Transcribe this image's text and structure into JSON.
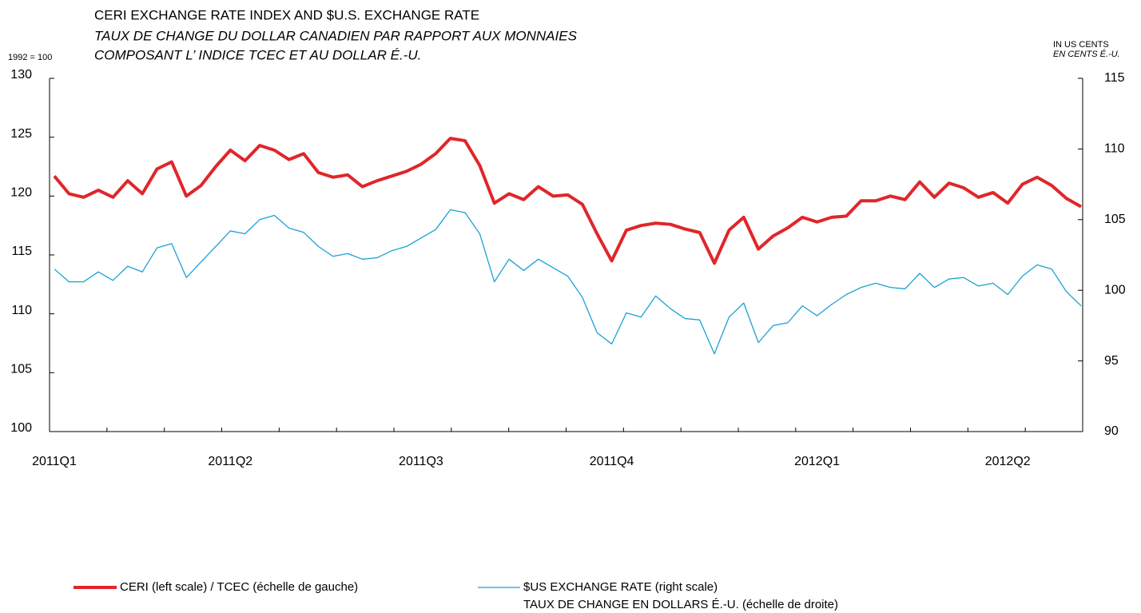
{
  "chart_data": {
    "type": "line",
    "title": "CERI EXCHANGE RATE INDEX AND $U.S. EXCHANGE RATE",
    "subtitle": [
      "TAUX DE CHANGE DU DOLLAR CANADIEN PAR RAPPORT AUX MONNAIES",
      "COMPOSANT L’ INDICE TCEC ET AU DOLLAR É.-U."
    ],
    "y_label": "1992 = 100",
    "y2_label": [
      "IN US CENTS",
      "EN CENTS É.-U."
    ],
    "categories": [
      "2011Q1",
      null,
      null,
      null,
      null,
      null,
      null,
      null,
      null,
      null,
      null,
      null,
      "2011Q2",
      null,
      null,
      null,
      null,
      null,
      null,
      null,
      null,
      null,
      null,
      null,
      null,
      "2011Q3",
      null,
      null,
      null,
      null,
      null,
      null,
      null,
      null,
      null,
      null,
      null,
      null,
      "2011Q4",
      null,
      null,
      null,
      null,
      null,
      null,
      null,
      null,
      null,
      null,
      null,
      null,
      null,
      "2012Q1",
      null,
      null,
      null,
      null,
      null,
      null,
      null,
      null,
      null,
      null,
      null,
      null,
      "2012Q2",
      null,
      null,
      null,
      null,
      null
    ],
    "series": [
      {
        "name": "CERI (left scale) / TCEC (échelle de gauche)",
        "color": "#e0262a",
        "axis": "y",
        "values": [
          121.7,
          120.2,
          119.9,
          120.5,
          119.9,
          121.3,
          120.2,
          122.3,
          122.9,
          120.0,
          120.9,
          122.5,
          123.9,
          123.0,
          124.3,
          123.9,
          123.1,
          123.6,
          122.0,
          121.6,
          121.8,
          120.8,
          121.3,
          121.7,
          122.1,
          122.7,
          123.6,
          124.9,
          124.7,
          122.6,
          119.4,
          120.2,
          119.7,
          120.8,
          120.0,
          120.1,
          119.3,
          116.8,
          114.5,
          117.1,
          117.5,
          117.7,
          117.6,
          117.2,
          116.9,
          114.3,
          117.1,
          118.2,
          115.5,
          116.6,
          117.3,
          118.2,
          117.8,
          118.2,
          118.3,
          119.6,
          119.6,
          120.0,
          119.7,
          121.2,
          119.9,
          121.1,
          120.7,
          119.9,
          120.3,
          119.4,
          121.0,
          121.6,
          120.9,
          119.8,
          119.1
        ]
      },
      {
        "name": "$US EXCHANGE RATE (right scale)\nTAUX DE CHANGE EN DOLLARS É.-U. (échelle de droite)",
        "color": "#1ba1d5",
        "axis": "y2",
        "values": [
          101.5,
          100.6,
          100.6,
          101.3,
          100.7,
          101.7,
          101.3,
          103.0,
          103.3,
          100.9,
          102.0,
          103.1,
          104.2,
          104.0,
          105.0,
          105.3,
          104.4,
          104.1,
          103.1,
          102.4,
          102.6,
          102.2,
          102.3,
          102.8,
          103.1,
          103.7,
          104.3,
          105.7,
          105.5,
          104.0,
          100.6,
          102.2,
          101.4,
          102.2,
          101.6,
          101.0,
          99.5,
          97.0,
          96.2,
          98.4,
          98.1,
          99.6,
          98.7,
          98.0,
          97.9,
          95.5,
          98.1,
          99.1,
          96.3,
          97.5,
          97.7,
          98.9,
          98.2,
          99.0,
          99.7,
          100.2,
          100.5,
          100.2,
          100.1,
          101.2,
          100.2,
          100.8,
          100.9,
          100.3,
          100.5,
          99.7,
          101.0,
          101.8,
          101.5,
          99.9,
          98.9
        ]
      }
    ],
    "ylim": [
      100,
      130
    ],
    "yticks": [
      100,
      105,
      110,
      115,
      120,
      125,
      130
    ],
    "y2lim": [
      90,
      115
    ],
    "y2ticks": [
      90,
      95,
      100,
      105,
      110,
      115
    ]
  }
}
